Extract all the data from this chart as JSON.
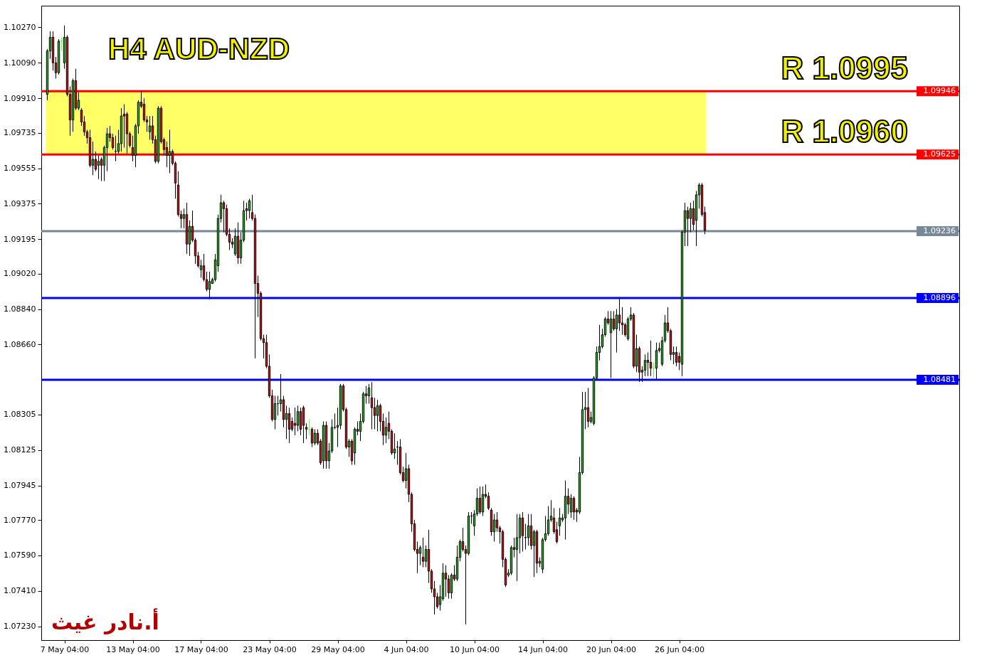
{
  "chart_data": {
    "type": "candlestick",
    "title": "H4 AUD-NZD",
    "categories": [
      null,
      null,
      null,
      null,
      null,
      null,
      "7 May 04:00",
      null,
      null,
      null,
      null,
      null,
      null,
      null,
      null,
      null,
      null,
      null,
      null,
      null,
      null,
      null,
      null,
      null,
      null,
      null,
      null,
      null,
      null,
      null,
      "13 May 04:00",
      null,
      null,
      null,
      null,
      null,
      null,
      null,
      null,
      null,
      null,
      null,
      null,
      null,
      null,
      null,
      null,
      null,
      null,
      null,
      null,
      null,
      null,
      null,
      "17 May 04:00",
      null,
      null,
      null,
      null,
      null,
      null,
      null,
      null,
      null,
      null,
      null,
      null,
      null,
      null,
      null,
      null,
      null,
      null,
      null,
      null,
      null,
      null,
      null,
      "23 May 04:00",
      null,
      null,
      null,
      null,
      null,
      null,
      null,
      null,
      null,
      null,
      null,
      null,
      null,
      null,
      null,
      null,
      null,
      null,
      null,
      null,
      null,
      null,
      null,
      "29 May 04:00",
      null,
      null,
      null,
      null,
      null,
      null,
      null,
      null,
      null,
      null,
      null,
      null,
      null,
      null,
      null,
      null,
      null,
      null,
      null,
      null,
      null,
      null,
      null,
      "4 Jun 04:00",
      null,
      null,
      null,
      null,
      null,
      null,
      null,
      null,
      null,
      null,
      null,
      null,
      null,
      null,
      null,
      null,
      null,
      null,
      null,
      null,
      null,
      null,
      null,
      "10 Jun 04:00",
      null,
      null,
      null,
      null,
      null,
      null,
      null,
      null,
      null,
      null,
      null,
      null,
      null,
      null,
      null,
      null,
      null,
      null,
      null,
      null,
      null,
      null,
      null,
      "14 Jun 04:00",
      null,
      null,
      null,
      null,
      null,
      null,
      null,
      null,
      null,
      null,
      null,
      null,
      null,
      null,
      null,
      null,
      null,
      null,
      null,
      null,
      null,
      null,
      null,
      "20 Jun 04:00",
      null,
      null,
      null,
      null,
      null,
      null,
      null,
      null,
      null,
      null,
      null,
      null,
      null,
      null,
      null,
      null,
      null,
      null,
      null,
      null,
      null,
      null,
      null,
      "26 Jun 04:00",
      null,
      null,
      null,
      null,
      null,
      null,
      null,
      null,
      null
    ],
    "ohlc": [
      [
        1.0993,
        1.1016,
        1.099,
        1.1015
      ],
      [
        1.1015,
        1.1025,
        1.1011,
        1.1022
      ],
      [
        1.1022,
        1.1025,
        1.1005,
        1.1009
      ],
      [
        1.1009,
        1.1012,
        1.1001,
        1.1004
      ],
      [
        1.1004,
        1.1021,
        1.1003,
        1.102
      ],
      [
        1.102,
        1.1022,
        1.1015,
        1.102
      ],
      [
        1.1009,
        1.1028,
        1.1006,
        1.1022
      ],
      [
        1.1022,
        1.1023,
        1.0992,
        1.0993
      ],
      [
        1.0993,
        1.0997,
        1.0972,
        1.098
      ],
      [
        1.098,
        1.1001,
        1.0974,
        1.1
      ],
      [
        1.1,
        1.1006,
        1.0985,
        1.0986
      ],
      [
        1.0986,
        1.0994,
        1.0985,
        1.099
      ],
      [
        1.0985,
        1.0986,
        1.0977,
        1.0979
      ],
      [
        1.0979,
        1.0982,
        1.0972,
        1.0974
      ],
      [
        1.0974,
        1.0975,
        1.0968,
        1.0971
      ],
      [
        1.0971,
        1.0975,
        1.0956,
        1.0957
      ],
      [
        1.0957,
        1.0969,
        1.0952,
        1.096
      ],
      [
        1.096,
        1.0964,
        1.0954,
        1.0955
      ],
      [
        1.0957,
        1.0962,
        1.095,
        1.0959
      ],
      [
        1.096,
        1.0961,
        1.0949,
        1.0957
      ],
      [
        1.0957,
        1.0967,
        1.0949,
        1.0966
      ],
      [
        1.0966,
        1.0976,
        1.0954,
        1.0973
      ],
      [
        1.0973,
        1.0977,
        1.0969,
        1.0971
      ],
      [
        1.0971,
        1.0973,
        1.0965,
        1.0966
      ],
      [
        1.0964,
        1.0972,
        1.0959,
        1.0964
      ],
      [
        1.0964,
        1.0975,
        1.0963,
        1.0968
      ],
      [
        1.0968,
        1.0986,
        1.0964,
        1.0982
      ],
      [
        1.0983,
        1.0988,
        1.0966,
        1.0982
      ],
      [
        1.0983,
        1.0984,
        1.0963,
        1.0973
      ],
      [
        1.0973,
        1.0974,
        1.0966,
        1.0967
      ],
      [
        1.0966,
        1.0972,
        1.0959,
        1.0962
      ],
      [
        1.0962,
        1.0978,
        1.0956,
        1.0977
      ],
      [
        1.0977,
        1.099,
        1.0973,
        1.0989
      ],
      [
        1.0989,
        1.0995,
        1.0986,
        1.0987
      ],
      [
        1.0988,
        1.0991,
        1.0979,
        1.098
      ],
      [
        1.098,
        1.0982,
        1.0974,
        1.0979
      ],
      [
        1.0974,
        1.0982,
        1.097,
        1.0977
      ],
      [
        1.0977,
        1.0982,
        1.0968,
        1.097
      ],
      [
        1.097,
        1.0972,
        1.0958,
        1.0959
      ],
      [
        1.0959,
        1.0987,
        1.0958,
        1.0986
      ],
      [
        1.0986,
        1.0987,
        1.0968,
        1.0969
      ],
      [
        1.097,
        1.0971,
        1.0962,
        1.0965
      ],
      [
        1.0966,
        1.0969,
        1.0956,
        1.0962
      ],
      [
        1.0962,
        1.0975,
        1.0953,
        1.0964
      ],
      [
        1.0964,
        1.0965,
        1.0957,
        1.0958
      ],
      [
        1.0958,
        1.0959,
        1.094,
        1.0948
      ],
      [
        1.0947,
        1.0954,
        1.0931,
        1.0932
      ],
      [
        1.0932,
        1.0934,
        1.0925,
        1.093
      ],
      [
        1.093,
        1.0935,
        1.0925,
        1.0932
      ],
      [
        1.0932,
        1.0938,
        1.0912,
        1.0917
      ],
      [
        1.0917,
        1.0929,
        1.0911,
        1.0926
      ],
      [
        1.0926,
        1.0934,
        1.0918,
        1.0919
      ],
      [
        1.0919,
        1.092,
        1.0907,
        1.0911
      ],
      [
        1.0911,
        1.0913,
        1.0905,
        1.0906
      ],
      [
        1.0904,
        1.0909,
        1.09,
        1.0906
      ],
      [
        1.0906,
        1.0912,
        1.0898,
        1.0899
      ],
      [
        1.0899,
        1.0903,
        1.0893,
        1.0894
      ],
      [
        1.0894,
        1.0903,
        1.0889,
        1.0898
      ],
      [
        1.0897,
        1.09,
        1.0897,
        1.0899
      ],
      [
        1.0899,
        1.0912,
        1.0898,
        1.0909
      ],
      [
        1.0906,
        1.0932,
        1.0903,
        1.093
      ],
      [
        1.093,
        1.0942,
        1.0928,
        1.0938
      ],
      [
        1.0938,
        1.0939,
        1.0923,
        1.0935
      ],
      [
        1.0935,
        1.0937,
        1.0921,
        1.0922
      ],
      [
        1.0922,
        1.0925,
        1.0914,
        1.0918
      ],
      [
        1.0918,
        1.092,
        1.0915,
        1.0917
      ],
      [
        1.0912,
        1.0925,
        1.0911,
        1.0921
      ],
      [
        1.0921,
        1.0928,
        1.0907,
        1.091
      ],
      [
        1.091,
        1.0923,
        1.0907,
        1.0919
      ],
      [
        1.0919,
        1.0939,
        1.0918,
        1.0934
      ],
      [
        1.0935,
        1.0938,
        1.0929,
        1.0934
      ],
      [
        1.0934,
        1.094,
        1.093,
        1.0939
      ],
      [
        1.0933,
        1.0942,
        1.0929,
        1.093
      ],
      [
        1.093,
        1.0932,
        1.0859,
        1.0897
      ],
      [
        1.0897,
        1.0901,
        1.088,
        1.0892
      ],
      [
        1.0892,
        1.0893,
        1.0868,
        1.0869
      ],
      [
        1.0869,
        1.0871,
        1.0859,
        1.0867
      ],
      [
        1.0867,
        1.0871,
        1.0854,
        1.0855
      ],
      [
        1.0855,
        1.0861,
        1.0839,
        1.084
      ],
      [
        1.084,
        1.0843,
        1.0827,
        1.0828
      ],
      [
        1.0828,
        1.084,
        1.0823,
        1.0836
      ],
      [
        1.0836,
        1.084,
        1.083,
        1.0836
      ],
      [
        1.0836,
        1.0851,
        1.0832,
        1.0838
      ],
      [
        1.0838,
        1.084,
        1.0824,
        1.0828
      ],
      [
        1.0828,
        1.0835,
        1.0818,
        1.0831
      ],
      [
        1.0831,
        1.0834,
        1.0816,
        1.0823
      ],
      [
        1.0827,
        1.0829,
        1.0822,
        1.0823
      ],
      [
        1.0826,
        1.0834,
        1.082,
        1.0825
      ],
      [
        1.0825,
        1.0835,
        1.0822,
        1.0832
      ],
      [
        1.0832,
        1.0834,
        1.082,
        1.0823
      ],
      [
        1.0834,
        1.0835,
        1.0816,
        1.0825
      ],
      [
        1.0824,
        1.0826,
        1.0818,
        1.0823
      ],
      [
        1.0823,
        1.0828,
        1.082,
        1.0823
      ],
      [
        1.0823,
        1.0824,
        1.0814,
        1.0816
      ],
      [
        1.0816,
        1.0823,
        1.0815,
        1.0821
      ],
      [
        1.0821,
        1.0823,
        1.0815,
        1.0816
      ],
      [
        1.0817,
        1.0818,
        1.0805,
        1.0806
      ],
      [
        1.0807,
        1.0827,
        1.0803,
        1.0825
      ],
      [
        1.0825,
        1.0827,
        1.0803,
        1.0807
      ],
      [
        1.0807,
        1.0816,
        1.0803,
        1.0812
      ],
      [
        1.0812,
        1.0828,
        1.0811,
        1.0824
      ],
      [
        1.0824,
        1.0831,
        1.0823,
        1.0824
      ],
      [
        1.0824,
        1.0834,
        1.0814,
        1.0825
      ],
      [
        1.0825,
        1.0846,
        1.0823,
        1.0845
      ],
      [
        1.0845,
        1.0846,
        1.0832,
        1.0833
      ],
      [
        1.0833,
        1.0834,
        1.0813,
        1.0814
      ],
      [
        1.0814,
        1.0818,
        1.0809,
        1.0817
      ],
      [
        1.0817,
        1.0818,
        1.0805,
        1.0807
      ],
      [
        1.0811,
        1.0824,
        1.0805,
        1.0823
      ],
      [
        1.0823,
        1.0827,
        1.082,
        1.0822
      ],
      [
        1.0822,
        1.0831,
        1.0817,
        1.0827
      ],
      [
        1.0827,
        1.0842,
        1.0826,
        1.0841
      ],
      [
        1.0841,
        1.0845,
        1.0836,
        1.084
      ],
      [
        1.084,
        1.0846,
        1.0836,
        1.0844
      ],
      [
        1.0839,
        1.0847,
        1.0823,
        1.0834
      ],
      [
        1.0834,
        1.0839,
        1.0823,
        1.083
      ],
      [
        1.083,
        1.0838,
        1.0822,
        1.0835
      ],
      [
        1.0835,
        1.0836,
        1.0822,
        1.0827
      ],
      [
        1.0827,
        1.0831,
        1.0815,
        1.082
      ],
      [
        1.082,
        1.0829,
        1.0816,
        1.0824
      ],
      [
        1.0826,
        1.0832,
        1.0818,
        1.0822
      ],
      [
        1.0822,
        1.0823,
        1.081,
        1.0811
      ],
      [
        1.0811,
        1.0821,
        1.0808,
        1.0813
      ],
      [
        1.0814,
        1.0817,
        1.0805,
        1.0814
      ],
      [
        1.0814,
        1.0818,
        1.08,
        1.0801
      ],
      [
        1.0801,
        1.0804,
        1.0796,
        1.0797
      ],
      [
        1.0797,
        1.0811,
        1.0793,
        1.0803
      ],
      [
        1.0803,
        1.0805,
        1.0786,
        1.079
      ],
      [
        1.079,
        1.0791,
        1.0771,
        1.0775
      ],
      [
        1.0775,
        1.0777,
        1.0761,
        1.0762
      ],
      [
        1.0762,
        1.0766,
        1.075,
        1.076
      ],
      [
        1.076,
        1.0764,
        1.0754,
        1.0763
      ],
      [
        1.0758,
        1.0768,
        1.0753,
        1.0756
      ],
      [
        1.0756,
        1.0764,
        1.0753,
        1.0762
      ],
      [
        1.0762,
        1.0772,
        1.0745,
        1.0751
      ],
      [
        1.0751,
        1.0752,
        1.074,
        1.0742
      ],
      [
        1.0742,
        1.0746,
        1.0729,
        1.0738
      ],
      [
        1.0738,
        1.074,
        1.0732,
        1.0733
      ],
      [
        1.0734,
        1.0744,
        1.0731,
        1.0738
      ],
      [
        1.0737,
        1.0755,
        1.0736,
        1.075
      ],
      [
        1.075,
        1.0754,
        1.0738,
        1.0747
      ],
      [
        1.0747,
        1.0749,
        1.0737,
        1.074
      ],
      [
        1.074,
        1.075,
        1.0737,
        1.0749
      ],
      [
        1.0749,
        1.0754,
        1.0746,
        1.0747
      ],
      [
        1.0747,
        1.0764,
        1.0746,
        1.0758
      ],
      [
        1.0758,
        1.0767,
        1.0756,
        1.0766
      ],
      [
        1.0766,
        1.0773,
        1.0761,
        1.0762
      ],
      [
        1.0762,
        1.0764,
        1.0724,
        1.076
      ],
      [
        1.076,
        1.0781,
        1.0759,
        1.0779
      ],
      [
        1.0779,
        1.0781,
        1.0775,
        1.0779
      ],
      [
        1.0774,
        1.0782,
        1.0769,
        1.078
      ],
      [
        1.078,
        1.0793,
        1.0779,
        1.0788
      ],
      [
        1.0788,
        1.0794,
        1.078,
        1.0781
      ],
      [
        1.0781,
        1.0794,
        1.0779,
        1.079
      ],
      [
        1.079,
        1.0795,
        1.0788,
        1.0789
      ],
      [
        1.0789,
        1.0791,
        1.0782,
        1.0783
      ],
      [
        1.0782,
        1.0783,
        1.0769,
        1.0771
      ],
      [
        1.0771,
        1.078,
        1.0766,
        1.0777
      ],
      [
        1.0777,
        1.0781,
        1.0771,
        1.0773
      ],
      [
        1.0773,
        1.0774,
        1.0765,
        1.0771
      ],
      [
        1.0771,
        1.0772,
        1.0753,
        1.0757
      ],
      [
        1.0757,
        1.0758,
        1.0743,
        1.0744
      ],
      [
        1.0749,
        1.0752,
        1.0748,
        1.075
      ],
      [
        1.075,
        1.0764,
        1.0749,
        1.0763
      ],
      [
        1.0763,
        1.0768,
        1.0758,
        1.0762
      ],
      [
        1.0762,
        1.078,
        1.0746,
        1.0768
      ],
      [
        1.0768,
        1.078,
        1.076,
        1.0778
      ],
      [
        1.0778,
        1.0781,
        1.0761,
        1.0769
      ],
      [
        1.0768,
        1.0775,
        1.0762,
        1.0768
      ],
      [
        1.0768,
        1.078,
        1.0764,
        1.0774
      ],
      [
        1.0774,
        1.078,
        1.0762,
        1.0764
      ],
      [
        1.0764,
        1.0772,
        1.0748,
        1.0771
      ],
      [
        1.0771,
        1.0772,
        1.075,
        1.0755
      ],
      [
        1.0755,
        1.0758,
        1.0753,
        1.0756
      ],
      [
        1.0752,
        1.0768,
        1.075,
        1.0767
      ],
      [
        1.0767,
        1.0779,
        1.0766,
        1.077
      ],
      [
        1.077,
        1.0784,
        1.0769,
        1.0777
      ],
      [
        1.0777,
        1.0787,
        1.0776,
        1.0779
      ],
      [
        1.0778,
        1.0783,
        1.077,
        1.0771
      ],
      [
        1.0772,
        1.0776,
        1.0765,
        1.0766
      ],
      [
        1.0774,
        1.0783,
        1.0769,
        1.0778
      ],
      [
        1.0777,
        1.078,
        1.0776,
        1.0778
      ],
      [
        1.0778,
        1.0797,
        1.0767,
        1.0789
      ],
      [
        1.0789,
        1.0793,
        1.078,
        1.0785
      ],
      [
        1.0781,
        1.079,
        1.0778,
        1.0788
      ],
      [
        1.0788,
        1.0789,
        1.0777,
        1.0781
      ],
      [
        1.0782,
        1.0783,
        1.0776,
        1.0781
      ],
      [
        1.0781,
        1.0809,
        1.078,
        1.0801
      ],
      [
        1.0801,
        1.0842,
        1.08,
        1.0833
      ],
      [
        1.0833,
        1.0842,
        1.0823,
        1.0834
      ],
      [
        1.0834,
        1.0844,
        1.0824,
        1.0827
      ],
      [
        1.0827,
        1.0832,
        1.0826,
        1.0829
      ],
      [
        1.0826,
        1.085,
        1.0825,
        1.0849
      ],
      [
        1.0849,
        1.0865,
        1.0848,
        1.0862
      ],
      [
        1.0862,
        1.0876,
        1.0858,
        1.0865
      ],
      [
        1.0865,
        1.0874,
        1.0864,
        1.0871
      ],
      [
        1.0871,
        1.088,
        1.087,
        1.0879
      ],
      [
        1.0879,
        1.0883,
        1.0876,
        1.0877
      ],
      [
        1.0872,
        1.0883,
        1.0849,
        1.0879
      ],
      [
        1.0879,
        1.0883,
        1.0873,
        1.0874
      ],
      [
        1.0874,
        1.0884,
        1.0862,
        1.0881
      ],
      [
        1.0881,
        1.089,
        1.0873,
        1.0877
      ],
      [
        1.0877,
        1.0885,
        1.0871,
        1.0876
      ],
      [
        1.0876,
        1.0877,
        1.087,
        1.0871
      ],
      [
        1.0869,
        1.088,
        1.0868,
        1.0879
      ],
      [
        1.0879,
        1.0885,
        1.0878,
        1.0881
      ],
      [
        1.0881,
        1.0882,
        1.0854,
        1.0855
      ],
      [
        1.0855,
        1.0871,
        1.0852,
        1.0864
      ],
      [
        1.0864,
        1.0865,
        1.0847,
        1.0852
      ],
      [
        1.0852,
        1.0855,
        1.0847,
        1.0853
      ],
      [
        1.0853,
        1.0861,
        1.085,
        1.0858
      ],
      [
        1.0858,
        1.0862,
        1.085,
        1.0857
      ],
      [
        1.0857,
        1.0868,
        1.085,
        1.0854
      ],
      [
        1.0854,
        1.0857,
        1.0849,
        1.0854
      ],
      [
        1.0854,
        1.0867,
        1.0848,
        1.0863
      ],
      [
        1.0863,
        1.0867,
        1.0862,
        1.0864
      ],
      [
        1.0856,
        1.087,
        1.0855,
        1.0868
      ],
      [
        1.0868,
        1.0881,
        1.0867,
        1.0877
      ],
      [
        1.0877,
        1.0885,
        1.0872,
        1.0873
      ],
      [
        1.0873,
        1.0874,
        1.0858,
        1.0861
      ],
      [
        1.0861,
        1.0865,
        1.0856,
        1.0862
      ],
      [
        1.0862,
        1.0865,
        1.0855,
        1.0857
      ],
      [
        1.086,
        1.0862,
        1.0853,
        1.0857
      ],
      [
        1.0856,
        1.0924,
        1.085,
        1.0923
      ],
      [
        1.0923,
        1.0938,
        1.0916,
        1.0934
      ],
      [
        1.0934,
        1.0936,
        1.0916,
        1.093
      ],
      [
        1.093,
        1.0938,
        1.0923,
        1.0935
      ],
      [
        1.0935,
        1.0939,
        1.0924,
        1.0927
      ],
      [
        1.0929,
        1.0944,
        1.0916,
        1.0942
      ],
      [
        1.0942,
        1.0948,
        1.0935,
        1.0947
      ],
      [
        1.0947,
        1.0948,
        1.0931,
        1.0932
      ],
      [
        1.0933,
        1.0936,
        1.0922,
        1.0924
      ]
    ],
    "colors": [
      "#20c020",
      "#20c020",
      "#e01010",
      "#e01010",
      "#20c020",
      "#66ff33",
      "#20c020",
      "#e01010",
      "#e01010",
      "#20c020",
      "#e01010",
      "#20c020",
      "#e01010",
      "#e01010",
      "#e01010",
      "#e01010",
      "#20c020",
      "#e01010",
      "#20c020",
      "#e01010",
      "#20c020",
      "#20c020",
      "#e01010",
      "#e01010",
      "#000000",
      "#20c020",
      "#20c020",
      "#e01010",
      "#e01010",
      "#e01010",
      "#e01010",
      "#20c020",
      "#20c020",
      "#e01010",
      "#e01010",
      "#e01010",
      "#20c020",
      "#e01010",
      "#e01010",
      "#20c020",
      "#e01010",
      "#e01010",
      "#e01010",
      "#20c020",
      "#e01010",
      "#e01010",
      "#e01010",
      "#e01010",
      "#20c020",
      "#e01010",
      "#20c020",
      "#e01010",
      "#e01010",
      "#e01010",
      "#20c020",
      "#e01010",
      "#e01010",
      "#20c020",
      "#20c020",
      "#20c020",
      "#20c020",
      "#20c020",
      "#e01010",
      "#e01010",
      "#e01010",
      "#e01010",
      "#20c020",
      "#e01010",
      "#20c020",
      "#20c020",
      "#e01010",
      "#20c020",
      "#e01010",
      "#e01010",
      "#e01010",
      "#e01010",
      "#e01010",
      "#e01010",
      "#e01010",
      "#e01010",
      "#20c020",
      "#000000",
      "#20c020",
      "#e01010",
      "#20c020",
      "#e01010",
      "#e01010",
      "#e01010",
      "#20c020",
      "#e01010",
      "#e01010",
      "#e01010",
      "#66ff33",
      "#e01010",
      "#20c020",
      "#e01010",
      "#e01010",
      "#20c020",
      "#e01010",
      "#20c020",
      "#20c020",
      "#000000",
      "#20c020",
      "#20c020",
      "#e01010",
      "#e01010",
      "#20c020",
      "#e01010",
      "#20c020",
      "#e01010",
      "#20c020",
      "#20c020",
      "#e01010",
      "#20c020",
      "#e01010",
      "#e01010",
      "#20c020",
      "#e01010",
      "#e01010",
      "#20c020",
      "#e01010",
      "#e01010",
      "#20c020",
      "#000000",
      "#e01010",
      "#e01010",
      "#20c020",
      "#e01010",
      "#e01010",
      "#e01010",
      "#e01010",
      "#20c020",
      "#e01010",
      "#20c020",
      "#e01010",
      "#e01010",
      "#e01010",
      "#e01010",
      "#20c020",
      "#20c020",
      "#e01010",
      "#e01010",
      "#20c020",
      "#e01010",
      "#20c020",
      "#20c020",
      "#e01010",
      "#e01010",
      "#20c020",
      "#000000",
      "#20c020",
      "#20c020",
      "#e01010",
      "#20c020",
      "#e01010",
      "#e01010",
      "#e01010",
      "#20c020",
      "#e01010",
      "#e01010",
      "#e01010",
      "#e01010",
      "#20c020",
      "#20c020",
      "#e01010",
      "#20c020",
      "#20c020",
      "#e01010",
      "#000000",
      "#20c020",
      "#e01010",
      "#20c020",
      "#e01010",
      "#20c020",
      "#20c020",
      "#20c020",
      "#20c020",
      "#20c020",
      "#e01010",
      "#e01010",
      "#20c020",
      "#20c020",
      "#20c020",
      "#e01010",
      "#20c020",
      "#e01010",
      "#e01010",
      "#20c020",
      "#20c020",
      "#20c020",
      "#e01010",
      "#20c020",
      "#20c020",
      "#20c020",
      "#20c020",
      "#20c020",
      "#20c020",
      "#e01010",
      "#20c020",
      "#e01010",
      "#20c020",
      "#e01010",
      "#e01010",
      "#e01010",
      "#20c020",
      "#20c020",
      "#e01010",
      "#20c020",
      "#e01010",
      "#20c020",
      "#20c020",
      "#e01010",
      "#e01010",
      "#66ff33",
      "#20c020",
      "#20c020",
      "#20c020",
      "#20c020",
      "#e01010",
      "#e01010",
      "#20c020",
      "#e01010",
      "#e01010",
      "#20c020",
      "#20c020",
      "#e01010",
      "#20c020",
      "#e01010",
      "#20c020",
      "#20c020",
      "#e01010",
      "#e01010"
    ],
    "ylim": [
      1.0716,
      1.1038
    ],
    "yticks": [
      {
        "value": 1.1027,
        "label": "1.10270"
      },
      {
        "value": 1.1009,
        "label": "1.10090"
      },
      {
        "value": 1.0991,
        "label": "1.09910"
      },
      1.09735,
      1.09555,
      1.09375,
      1.09195,
      {
        "value": 1.0902,
        "label": "1.09020"
      },
      {
        "value": 1.0884,
        "label": "1.08840"
      },
      {
        "value": 1.0866,
        "label": "1.08660"
      },
      1.08305,
      1.08125,
      1.07945,
      {
        "value": 1.0777,
        "label": "1.07770"
      },
      {
        "value": 1.0759,
        "label": "1.07590"
      },
      {
        "value": 1.0741,
        "label": "1.07410"
      },
      {
        "value": 1.0723,
        "label": "1.07230"
      }
    ],
    "ref_lines": [
      {
        "axis": "y",
        "value": 1.09946,
        "label": "1.09946",
        "color": "#ff0000"
      },
      {
        "axis": "y",
        "value": 1.09625,
        "label": "1.09625",
        "color": "#ff0000"
      },
      {
        "axis": "y",
        "value": 1.09236,
        "label": "1.09236",
        "color": "#778899"
      },
      {
        "axis": "y",
        "value": 1.08896,
        "label": "1.08896",
        "color": "#0000ff"
      },
      {
        "axis": "y",
        "value": 1.08481,
        "label": "1.08481",
        "color": "#0000ff"
      }
    ],
    "bands": [
      {
        "axis": "y",
        "from": 1.09625,
        "to": 1.09946,
        "color": "#ffff66"
      }
    ],
    "annotations": [
      {
        "text": "R 1.0995",
        "y": 1.09946
      },
      {
        "text": "R 1.0960",
        "y": 1.09625
      },
      "أ.نادر غيث"
    ]
  }
}
